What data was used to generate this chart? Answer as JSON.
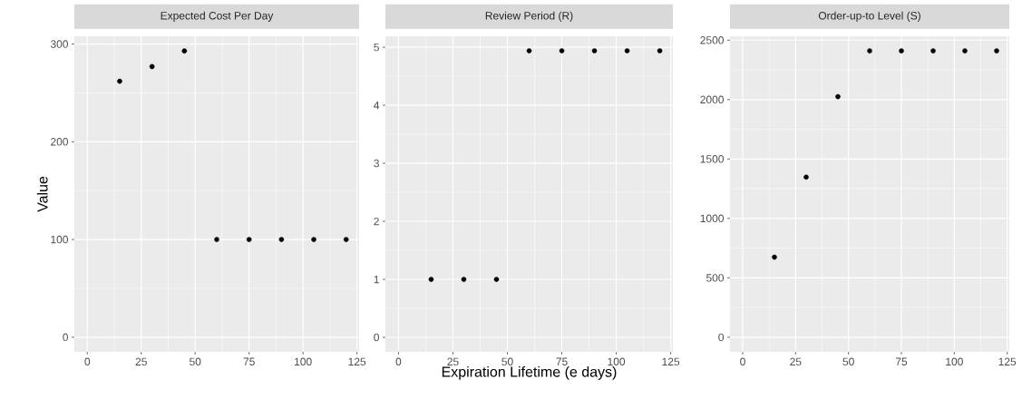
{
  "chart_data": [
    {
      "type": "scatter",
      "title": "Expected Cost Per Day",
      "ylabel": "Value",
      "x": [
        15,
        30,
        45,
        60,
        75,
        90,
        105,
        120
      ],
      "values": [
        262,
        277,
        293,
        100,
        100,
        100,
        100,
        100
      ],
      "color": "#000000",
      "marker": "circle",
      "grid": true,
      "xlim": [
        -6,
        126
      ],
      "ylim": [
        -15,
        308
      ],
      "xticks": [
        0,
        25,
        50,
        75,
        100,
        125
      ],
      "yticks": [
        0,
        100,
        200,
        300
      ]
    },
    {
      "type": "scatter",
      "title": "Review Period (R)",
      "xlabel": "Expiration Lifetime (e days)",
      "x": [
        15,
        30,
        45,
        60,
        75,
        90,
        105,
        120
      ],
      "values": [
        1,
        1,
        1,
        4.94,
        4.94,
        4.94,
        4.94,
        4.94
      ],
      "color": "#000000",
      "marker": "circle",
      "grid": true,
      "xlim": [
        -6,
        126
      ],
      "ylim": [
        -0.25,
        5.19
      ],
      "xticks": [
        0,
        25,
        50,
        75,
        100,
        125
      ],
      "yticks": [
        0,
        1,
        2,
        3,
        4,
        5
      ]
    },
    {
      "type": "scatter",
      "title": "Order-up-to Level (S)",
      "x": [
        15,
        30,
        45,
        60,
        75,
        90,
        105,
        120
      ],
      "values": [
        674,
        1348,
        2025,
        2410,
        2410,
        2410,
        2410,
        2410
      ],
      "color": "#000000",
      "marker": "circle",
      "grid": true,
      "xlim": [
        -6,
        126
      ],
      "ylim": [
        -123,
        2533
      ],
      "xticks": [
        0,
        25,
        50,
        75,
        100,
        125
      ],
      "yticks": [
        0,
        500,
        1000,
        1500,
        2000,
        2500
      ]
    }
  ]
}
